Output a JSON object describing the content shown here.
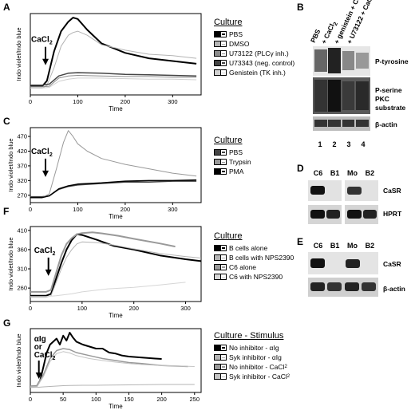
{
  "panels": {
    "A": "A",
    "B": "B",
    "C": "C",
    "D": "D",
    "E": "E",
    "F": "F",
    "G": "G"
  },
  "colors": {
    "black": "#000000",
    "dark": "#444444",
    "mid": "#8c8c8c",
    "light": "#b4b4b4",
    "faint": "#d0d0d0"
  },
  "chart_data": [
    {
      "id": "A",
      "type": "line",
      "ylabel": "Indo violet/Indo blue",
      "xlabel": "Time",
      "xlim": [
        0,
        360
      ],
      "ylim": [
        200,
        500
      ],
      "xticks": [
        0,
        100,
        200,
        300
      ],
      "yticks": [],
      "annotation": "CaCl",
      "annotation_sub": "2",
      "arrow_x": 32,
      "legend_title": "Culture",
      "series": [
        {
          "name": "PBS",
          "color": "#000000",
          "width": 2,
          "x": [
            0,
            25,
            35,
            50,
            65,
            80,
            90,
            100,
            120,
            150,
            200,
            250,
            300,
            350
          ],
          "y": [
            232,
            232,
            252,
            360,
            435,
            470,
            485,
            480,
            440,
            390,
            355,
            335,
            325,
            315
          ]
        },
        {
          "name": "DMSO",
          "color": "#b4b4b4",
          "width": 1,
          "x": [
            0,
            25,
            35,
            50,
            65,
            80,
            90,
            100,
            120,
            150,
            200,
            250,
            300,
            350
          ],
          "y": [
            225,
            225,
            235,
            300,
            380,
            420,
            430,
            435,
            420,
            385,
            365,
            350,
            345,
            335
          ]
        },
        {
          "name": "U73122 (PLCγ inh.)",
          "color": "#8c8c8c",
          "width": 1,
          "x": [
            0,
            25,
            40,
            60,
            80,
            100,
            150,
            200,
            250,
            300,
            350
          ],
          "y": [
            230,
            230,
            232,
            262,
            270,
            272,
            270,
            268,
            268,
            265,
            265
          ]
        },
        {
          "name": "U73343 (neg. control)",
          "color": "#444444",
          "width": 1.5,
          "x": [
            0,
            25,
            40,
            60,
            80,
            100,
            150,
            200,
            250,
            300,
            350
          ],
          "y": [
            236,
            236,
            240,
            270,
            280,
            282,
            280,
            276,
            274,
            272,
            270
          ]
        },
        {
          "name": "Genistein (TK inh.)",
          "color": "#d0d0d0",
          "width": 1,
          "x": [
            0,
            25,
            40,
            60,
            80,
            100,
            150,
            200,
            250,
            300,
            350
          ],
          "y": [
            226,
            226,
            228,
            250,
            258,
            262,
            262,
            260,
            258,
            258,
            256
          ]
        }
      ]
    },
    {
      "id": "C",
      "type": "line",
      "ylabel": "Indo violet/Indo blue",
      "xlabel": "Time",
      "xlim": [
        0,
        360
      ],
      "ylim": [
        245,
        500
      ],
      "xticks": [
        0,
        100,
        200,
        300
      ],
      "yticks": [
        270,
        320,
        370,
        420,
        470
      ],
      "annotation": "CaCl",
      "annotation_sub": "2",
      "arrow_x": 32,
      "legend_title": "Culture",
      "series": [
        {
          "name": "PBS",
          "color": "#444444",
          "width": 1.5,
          "x": [
            0,
            25,
            40,
            60,
            80,
            100,
            150,
            200,
            250,
            300,
            350
          ],
          "y": [
            265,
            265,
            268,
            290,
            300,
            305,
            310,
            315,
            315,
            318,
            318
          ]
        },
        {
          "name": "Trypsin",
          "color": "#999999",
          "width": 1,
          "x": [
            0,
            25,
            40,
            55,
            70,
            80,
            90,
            100,
            120,
            150,
            200,
            250,
            300,
            350
          ],
          "y": [
            262,
            262,
            275,
            360,
            450,
            490,
            470,
            445,
            420,
            395,
            375,
            360,
            345,
            335
          ]
        },
        {
          "name": "PMA",
          "color": "#000000",
          "width": 1.5,
          "x": [
            0,
            25,
            40,
            60,
            80,
            100,
            150,
            200,
            250,
            300,
            350
          ],
          "y": [
            262,
            262,
            268,
            292,
            302,
            308,
            312,
            318,
            320,
            320,
            322
          ]
        }
      ]
    },
    {
      "id": "F",
      "type": "line",
      "ylabel": "Indo violet/Indo blue",
      "xlabel": "Time",
      "xlim": [
        0,
        330
      ],
      "ylim": [
        225,
        420
      ],
      "xticks": [
        0,
        100,
        200,
        300
      ],
      "yticks": [
        260,
        310,
        360,
        410
      ],
      "annotation": "CaCl",
      "annotation_sub": "2",
      "arrow_x": 35,
      "legend_title": "Culture",
      "series": [
        {
          "name": "B cells alone",
          "color": "#000000",
          "width": 2,
          "x": [
            0,
            30,
            40,
            50,
            60,
            70,
            80,
            90,
            100,
            130,
            160,
            200,
            250,
            300,
            330
          ],
          "y": [
            240,
            240,
            245,
            285,
            325,
            360,
            385,
            400,
            398,
            385,
            370,
            360,
            345,
            335,
            330
          ]
        },
        {
          "name": "B cells with NPS2390",
          "color": "#b4b4b4",
          "width": 1,
          "x": [
            0,
            30,
            40,
            50,
            60,
            70,
            80,
            90,
            100,
            130,
            160,
            200,
            250,
            300,
            330
          ],
          "y": [
            236,
            236,
            240,
            275,
            310,
            340,
            360,
            375,
            380,
            378,
            372,
            362,
            350,
            342,
            338
          ]
        },
        {
          "name": "C6 alone",
          "color": "#999999",
          "width": 2,
          "x": [
            0,
            30,
            40,
            50,
            60,
            70,
            80,
            90,
            100,
            120,
            140,
            170,
            200,
            250,
            280
          ],
          "y": [
            250,
            250,
            255,
            300,
            345,
            375,
            390,
            400,
            403,
            405,
            402,
            396,
            388,
            376,
            368
          ]
        },
        {
          "name": "C6 with NPS2390",
          "color": "#d6d6d6",
          "width": 1,
          "x": [
            0,
            30,
            50,
            80,
            100,
            150,
            200,
            250,
            300
          ],
          "y": [
            238,
            238,
            240,
            245,
            250,
            258,
            262,
            268,
            275
          ]
        }
      ]
    },
    {
      "id": "G",
      "type": "line",
      "ylabel": "Indo violet/Indo blue",
      "xlabel": "Time",
      "xlim": [
        0,
        260
      ],
      "ylim": [
        200,
        520
      ],
      "xticks": [
        0,
        50,
        100,
        150,
        200,
        250
      ],
      "yticks": [],
      "annotation": "αIg or CaCl",
      "annotation_sub": "2",
      "arrow_x": 13,
      "legend_title": "Culture - Stimulus",
      "series": [
        {
          "name": "No inhibitor - αIg",
          "color": "#000000",
          "width": 2,
          "x": [
            0,
            10,
            15,
            20,
            25,
            30,
            35,
            40,
            45,
            50,
            55,
            60,
            65,
            70,
            80,
            90,
            100,
            110,
            120,
            130,
            140,
            150,
            170,
            190,
            200
          ],
          "y": [
            230,
            232,
            260,
            330,
            400,
            440,
            455,
            470,
            440,
            485,
            460,
            500,
            475,
            455,
            440,
            430,
            420,
            420,
            400,
            395,
            385,
            380,
            375,
            370,
            368
          ]
        },
        {
          "name": "Syk inhibitor - αIg",
          "color": "#b4b4b4",
          "width": 1,
          "x": [
            0,
            12,
            20,
            30,
            40,
            50,
            60,
            80,
            100,
            150,
            200,
            250
          ],
          "y": [
            225,
            226,
            228,
            230,
            232,
            234,
            235,
            236,
            236,
            238,
            240,
            240
          ]
        },
        {
          "name": "No inhibitor - CaCl",
          "name_sub": "2",
          "color": "#999999",
          "width": 1.5,
          "x": [
            0,
            10,
            20,
            30,
            40,
            50,
            60,
            70,
            90,
            110,
            130,
            150,
            170,
            200,
            240
          ],
          "y": [
            232,
            233,
            290,
            370,
            410,
            420,
            415,
            400,
            385,
            370,
            360,
            350,
            345,
            335,
            330
          ]
        },
        {
          "name": "Syk inhibitor - CaCl",
          "name_sub": "2",
          "color": "#c4c4c4",
          "width": 1,
          "x": [
            0,
            10,
            20,
            30,
            40,
            50,
            60,
            70,
            90,
            110,
            130,
            150,
            170,
            200,
            250
          ],
          "y": [
            228,
            229,
            280,
            355,
            395,
            405,
            398,
            385,
            370,
            360,
            352,
            345,
            340,
            335,
            330
          ]
        }
      ]
    }
  ],
  "blot_B": {
    "lanes": [
      "PBS",
      "+ CaCl",
      "+ genistein + CaCl",
      "+ U73122 + CaCl"
    ],
    "lane_sub": "2",
    "lane_numbers": [
      "1",
      "2",
      "3",
      "4"
    ],
    "rows": [
      "P-tyrosine",
      "P-serine PKC substrate",
      "β-actin"
    ]
  },
  "blot_D": {
    "lanes": [
      "C6",
      "B1",
      "Mo",
      "B2"
    ],
    "rows": [
      "CaSR",
      "HPRT"
    ]
  },
  "blot_E": {
    "lanes": [
      "C6",
      "B1",
      "Mo",
      "B2"
    ],
    "rows": [
      "CaSR",
      "β-actin"
    ]
  }
}
